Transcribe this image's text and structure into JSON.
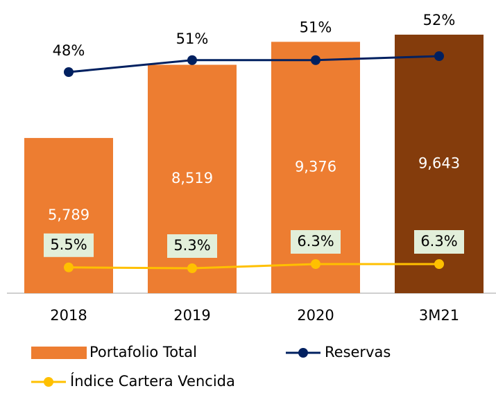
{
  "chart_data": {
    "type": "combo",
    "categories": [
      "2018",
      "2019",
      "2020",
      "3M21"
    ],
    "series": [
      {
        "name": "Portafolio Total",
        "type": "bar",
        "color": "#ED7D31",
        "colors": [
          "#ED7D31",
          "#ED7D31",
          "#ED7D31",
          "#843C0C"
        ],
        "values": [
          5789,
          8519,
          9376,
          9643
        ],
        "value_labels": [
          "5,789",
          "8,519",
          "9,376",
          "9,643"
        ]
      },
      {
        "name": "Reservas",
        "type": "line",
        "color": "#002060",
        "values": [
          48,
          51,
          51,
          52
        ],
        "value_labels": [
          "48%",
          "51%",
          "51%",
          "52%"
        ]
      },
      {
        "name": "Índice Cartera Vencida",
        "type": "line",
        "color": "#FFC000",
        "values": [
          5.5,
          5.3,
          6.3,
          6.3
        ],
        "value_labels": [
          "5.5%",
          "5.3%",
          "6.3%",
          "6.3%"
        ]
      }
    ]
  }
}
